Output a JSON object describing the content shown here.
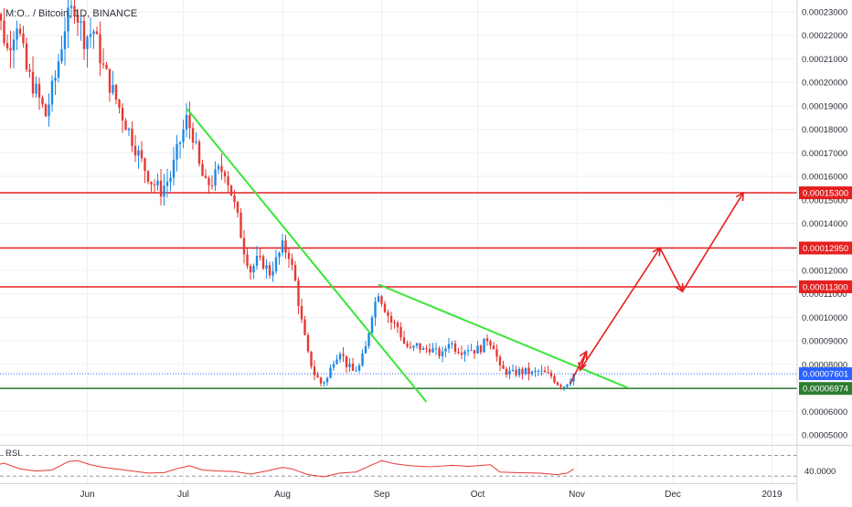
{
  "header": {
    "symbol_title": "M:O..  / Bitcoin, 1D, BINANCE"
  },
  "chart_data": {
    "type": "candlestick",
    "title": "M:O..  / Bitcoin, 1D, BINANCE",
    "ylim": [
      4.5e-06,
      0.000235
    ],
    "y_tick_labels": [
      "0.00023000",
      "0.00022000",
      "0.00021000",
      "0.00020000",
      "0.00019000",
      "0.00018000",
      "0.00017000",
      "0.00016000",
      "0.00015000",
      "0.00014000",
      "0.00013000",
      "0.00012000",
      "0.00011000",
      "0.00010000",
      "0.00009000",
      "0.00008000",
      "0.00007000",
      "0.00006000",
      "0.00005000"
    ],
    "y_tick_values": [
      0.00023,
      0.00022,
      0.00021,
      0.0002,
      0.00019,
      0.00018,
      0.00017,
      0.00016,
      0.00015,
      0.00014,
      0.00013,
      0.00012,
      0.00011,
      0.0001,
      9e-05,
      8e-05,
      7e-05,
      6e-05,
      5e-05
    ],
    "x_tick_labels": [
      "Jun",
      "Jul",
      "Aug",
      "Sep",
      "Oct",
      "Nov",
      "Dec",
      "2019"
    ],
    "x_tick_days": [
      31,
      61,
      92,
      123,
      153,
      184,
      214,
      245
    ],
    "grid": true,
    "bull_color": "#1e88e5",
    "bear_color": "#e53935",
    "price_path": [
      {
        "day": 0,
        "v": 0.000222
      },
      {
        "day": 3,
        "v": 0.00023
      },
      {
        "day": 6,
        "v": 0.000214
      },
      {
        "day": 9,
        "v": 0.000226
      },
      {
        "day": 12,
        "v": 0.000205
      },
      {
        "day": 15,
        "v": 0.000196
      },
      {
        "day": 18,
        "v": 0.000186
      },
      {
        "day": 21,
        "v": 0.000202
      },
      {
        "day": 24,
        "v": 0.000224
      },
      {
        "day": 27,
        "v": 0.000233
      },
      {
        "day": 30,
        "v": 0.000219
      },
      {
        "day": 33,
        "v": 0.000222
      },
      {
        "day": 36,
        "v": 0.000206
      },
      {
        "day": 39,
        "v": 0.000196
      },
      {
        "day": 42,
        "v": 0.000186
      },
      {
        "day": 45,
        "v": 0.000176
      },
      {
        "day": 48,
        "v": 0.000166
      },
      {
        "day": 51,
        "v": 0.000158
      },
      {
        "day": 54,
        "v": 0.000154
      },
      {
        "day": 57,
        "v": 0.00016
      },
      {
        "day": 60,
        "v": 0.000175
      },
      {
        "day": 62,
        "v": 0.000184
      },
      {
        "day": 64,
        "v": 0.000178
      },
      {
        "day": 66,
        "v": 0.000164
      },
      {
        "day": 68,
        "v": 0.000156
      },
      {
        "day": 70,
        "v": 0.000158
      },
      {
        "day": 72,
        "v": 0.000162
      },
      {
        "day": 74,
        "v": 0.000163
      },
      {
        "day": 76,
        "v": 0.000153
      },
      {
        "day": 78,
        "v": 0.000142
      },
      {
        "day": 80,
        "v": 0.000129
      },
      {
        "day": 82,
        "v": 0.00012
      },
      {
        "day": 84,
        "v": 0.000124
      },
      {
        "day": 86,
        "v": 0.000123
      },
      {
        "day": 88,
        "v": 0.000119
      },
      {
        "day": 90,
        "v": 0.000124
      },
      {
        "day": 92,
        "v": 0.00013
      },
      {
        "day": 94,
        "v": 0.000127
      },
      {
        "day": 96,
        "v": 0.000115
      },
      {
        "day": 98,
        "v": 9.8e-05
      },
      {
        "day": 100,
        "v": 8.4e-05
      },
      {
        "day": 102,
        "v": 7.6e-05
      },
      {
        "day": 104,
        "v": 7.2e-05
      },
      {
        "day": 106,
        "v": 7.4e-05
      },
      {
        "day": 108,
        "v": 8.2e-05
      },
      {
        "day": 110,
        "v": 8.6e-05
      },
      {
        "day": 112,
        "v": 8e-05
      },
      {
        "day": 114,
        "v": 7.7e-05
      },
      {
        "day": 116,
        "v": 7.9e-05
      },
      {
        "day": 118,
        "v": 8.7e-05
      },
      {
        "day": 120,
        "v": 0.000102
      },
      {
        "day": 122,
        "v": 0.000111
      },
      {
        "day": 124,
        "v": 0.000104
      },
      {
        "day": 126,
        "v": 9.8e-05
      },
      {
        "day": 128,
        "v": 9.6e-05
      },
      {
        "day": 130,
        "v": 8.9e-05
      },
      {
        "day": 132,
        "v": 8.6e-05
      },
      {
        "day": 134,
        "v": 8.8e-05
      },
      {
        "day": 136,
        "v": 8.6e-05
      },
      {
        "day": 138,
        "v": 8.7e-05
      },
      {
        "day": 140,
        "v": 8.5e-05
      },
      {
        "day": 142,
        "v": 8.4e-05
      },
      {
        "day": 144,
        "v": 9e-05
      },
      {
        "day": 146,
        "v": 8.7e-05
      },
      {
        "day": 148,
        "v": 8.6e-05
      },
      {
        "day": 150,
        "v": 8.7e-05
      },
      {
        "day": 152,
        "v": 8.6e-05
      },
      {
        "day": 154,
        "v": 8.7e-05
      },
      {
        "day": 156,
        "v": 9.1e-05
      },
      {
        "day": 158,
        "v": 8.8e-05
      },
      {
        "day": 160,
        "v": 7.8e-05
      },
      {
        "day": 162,
        "v": 7.7e-05
      },
      {
        "day": 164,
        "v": 7.6e-05
      },
      {
        "day": 166,
        "v": 7.7e-05
      },
      {
        "day": 168,
        "v": 7.7e-05
      },
      {
        "day": 170,
        "v": 7.6e-05
      },
      {
        "day": 172,
        "v": 7.7e-05
      },
      {
        "day": 174,
        "v": 7.6e-05
      },
      {
        "day": 176,
        "v": 7.5e-05
      },
      {
        "day": 178,
        "v": 7.2e-05
      },
      {
        "day": 180,
        "v": 7.1e-05
      },
      {
        "day": 182,
        "v": 7.4e-05
      },
      {
        "day": 183,
        "v": 7.6e-05
      }
    ],
    "horizontal_levels": [
      {
        "label": "0.00015300",
        "value": 0.000153,
        "color": "#e52020"
      },
      {
        "label": "0.00012950",
        "value": 0.0001295,
        "color": "#e52020"
      },
      {
        "label": "0.00011300",
        "value": 0.000113,
        "color": "#e52020"
      },
      {
        "label": "0.00006974",
        "value": 6.974e-05,
        "color": "#2e7d32"
      }
    ],
    "current_price": {
      "label": "0.00007601",
      "value": 7.601e-05,
      "color": "#2962ff"
    },
    "trendlines": [
      {
        "color": "#39e639",
        "from": {
          "day": 62,
          "v": 0.000189
        },
        "to": {
          "day": 137,
          "v": 6.4e-05
        }
      },
      {
        "color": "#39e639",
        "from": {
          "day": 122,
          "v": 0.000114
        },
        "to": {
          "day": 200,
          "v": 7e-05
        }
      }
    ],
    "projection_path": [
      {
        "day": 182,
        "v": 7.2e-05
      },
      {
        "day": 187,
        "v": 8.55e-05
      },
      {
        "day": 185,
        "v": 7.75e-05
      },
      {
        "day": 210,
        "v": 0.0001295
      },
      {
        "day": 217,
        "v": 0.000111
      },
      {
        "day": 236,
        "v": 0.000153
      }
    ],
    "projection_color": "#e52020",
    "rsi": {
      "label": "RSI",
      "tick_label": "40.0000",
      "tick_value": 40,
      "band_upper": 70,
      "band_lower": 30,
      "ylim": [
        20,
        85
      ],
      "values": [
        {
          "day": 0,
          "v": 48
        },
        {
          "day": 5,
          "v": 55
        },
        {
          "day": 10,
          "v": 44
        },
        {
          "day": 15,
          "v": 40
        },
        {
          "day": 20,
          "v": 42
        },
        {
          "day": 25,
          "v": 58
        },
        {
          "day": 28,
          "v": 60
        },
        {
          "day": 32,
          "v": 52
        },
        {
          "day": 36,
          "v": 47
        },
        {
          "day": 40,
          "v": 44
        },
        {
          "day": 45,
          "v": 40
        },
        {
          "day": 50,
          "v": 36
        },
        {
          "day": 55,
          "v": 37
        },
        {
          "day": 60,
          "v": 46
        },
        {
          "day": 63,
          "v": 50
        },
        {
          "day": 67,
          "v": 42
        },
        {
          "day": 72,
          "v": 40
        },
        {
          "day": 77,
          "v": 39
        },
        {
          "day": 82,
          "v": 34
        },
        {
          "day": 87,
          "v": 40
        },
        {
          "day": 92,
          "v": 47
        },
        {
          "day": 95,
          "v": 44
        },
        {
          "day": 100,
          "v": 33
        },
        {
          "day": 105,
          "v": 29
        },
        {
          "day": 110,
          "v": 36
        },
        {
          "day": 115,
          "v": 38
        },
        {
          "day": 120,
          "v": 52
        },
        {
          "day": 123,
          "v": 60
        },
        {
          "day": 127,
          "v": 54
        },
        {
          "day": 132,
          "v": 50
        },
        {
          "day": 138,
          "v": 48
        },
        {
          "day": 145,
          "v": 51
        },
        {
          "day": 150,
          "v": 49
        },
        {
          "day": 157,
          "v": 52
        },
        {
          "day": 160,
          "v": 38
        },
        {
          "day": 165,
          "v": 37
        },
        {
          "day": 172,
          "v": 36
        },
        {
          "day": 178,
          "v": 33
        },
        {
          "day": 181,
          "v": 36
        },
        {
          "day": 183,
          "v": 44
        }
      ]
    }
  }
}
